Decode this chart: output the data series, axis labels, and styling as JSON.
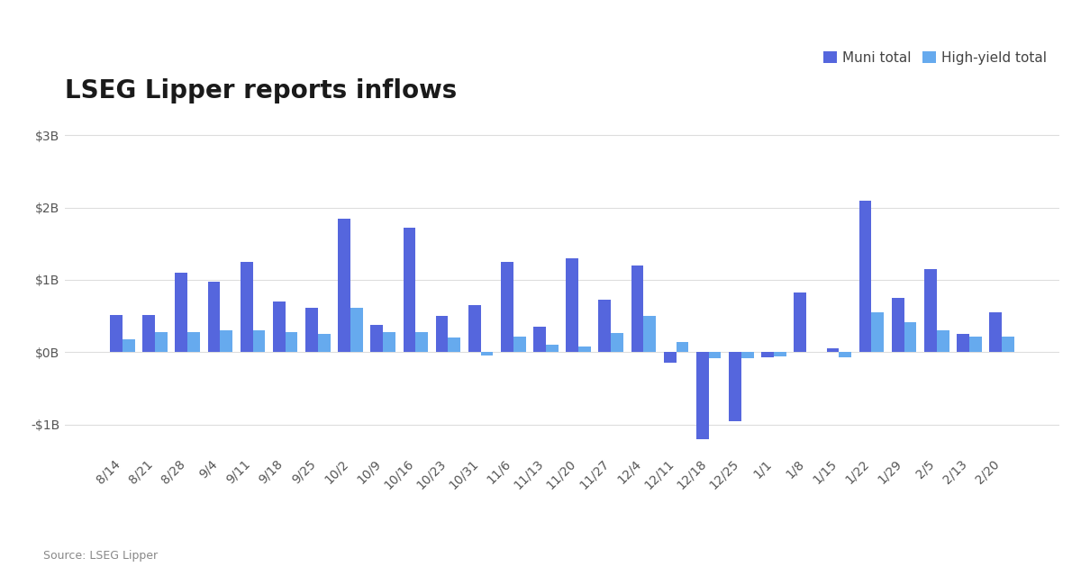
{
  "title": "LSEG Lipper reports inflows",
  "source": "Source: LSEG Lipper",
  "legend_labels": [
    "Muni total",
    "High-yield total"
  ],
  "muni_color": "#5566dd",
  "hy_color": "#66aaee",
  "background_color": "#ffffff",
  "categories": [
    "8/14",
    "8/21",
    "8/28",
    "9/4",
    "9/11",
    "9/18",
    "9/25",
    "10/2",
    "10/9",
    "10/16",
    "10/23",
    "10/31",
    "11/6",
    "11/13",
    "11/20",
    "11/27",
    "12/4",
    "12/11",
    "12/18",
    "12/25",
    "1/1",
    "1/8",
    "1/15",
    "1/22",
    "1/29",
    "2/5",
    "2/13",
    "2/20"
  ],
  "muni_values": [
    0.52,
    0.52,
    1.1,
    0.97,
    1.25,
    0.7,
    0.62,
    1.85,
    0.38,
    1.72,
    0.5,
    0.65,
    1.25,
    0.35,
    1.3,
    0.72,
    1.2,
    -0.15,
    -1.2,
    -0.95,
    -0.07,
    0.83,
    0.05,
    2.1,
    0.75,
    1.15,
    0.25,
    0.55
  ],
  "hy_values": [
    0.18,
    0.28,
    0.28,
    0.3,
    0.3,
    0.28,
    0.25,
    0.62,
    0.28,
    0.28,
    0.2,
    -0.05,
    0.22,
    0.1,
    0.08,
    0.27,
    0.5,
    0.14,
    -0.08,
    -0.08,
    -0.06,
    0.0,
    -0.07,
    0.55,
    0.42,
    0.3,
    0.22,
    0.22
  ],
  "ylim_low": -1.4,
  "ylim_high": 3.3,
  "ytick_vals": [
    -1.0,
    0.0,
    1.0,
    2.0,
    3.0
  ],
  "ytick_labels": [
    "-$1B",
    "$0B",
    "$1B",
    "$2B",
    "$3B"
  ],
  "bar_width": 0.38,
  "title_fontsize": 20,
  "tick_fontsize": 10,
  "legend_fontsize": 11,
  "source_fontsize": 9
}
